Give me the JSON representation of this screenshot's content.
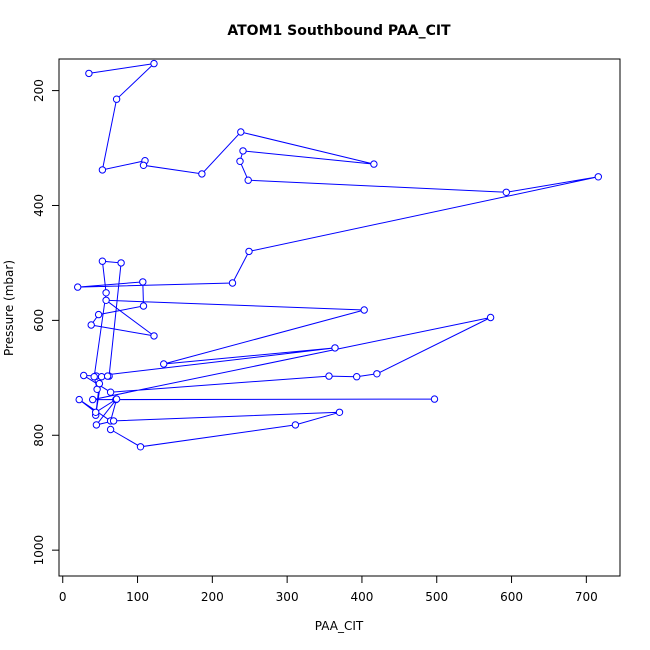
{
  "chart_data": {
    "type": "line",
    "title": "ATOM1 Southbound PAA_CIT",
    "xlabel": "PAA_CIT",
    "ylabel": "Pressure (mbar)",
    "xlim": [
      -5,
      745
    ],
    "ylim": [
      1045,
      145
    ],
    "y_reversed": true,
    "grid": false,
    "legend": "none",
    "color": "#0000ff",
    "x_ticks": [
      0,
      100,
      200,
      300,
      400,
      500,
      600,
      700
    ],
    "y_ticks": [
      200,
      400,
      600,
      800,
      1000
    ],
    "series": [
      {
        "x": [
          35,
          122,
          72,
          53,
          110,
          108,
          186,
          238,
          416,
          241,
          237,
          248,
          593,
          716,
          249,
          227,
          20,
          107,
          108,
          48,
          38,
          122,
          58,
          403,
          135,
          364,
          44,
          45,
          62,
          78,
          53,
          58,
          42,
          46,
          49,
          44,
          52,
          60,
          28,
          64,
          356,
          393,
          420,
          572,
          40,
          497,
          71,
          44,
          22,
          64,
          72,
          45,
          68,
          370,
          311,
          104,
          64
        ],
        "y": [
          170,
          153,
          215,
          338,
          322,
          330,
          345,
          272,
          328,
          305,
          323,
          356,
          377,
          350,
          480,
          535,
          542,
          533,
          575,
          590,
          608,
          627,
          565,
          582,
          676,
          648,
          697,
          697,
          697,
          500,
          497,
          552,
          698,
          720,
          710,
          765,
          698,
          697,
          696,
          725,
          697,
          698,
          693,
          595,
          738,
          737,
          738,
          760,
          738,
          775,
          737,
          782,
          775,
          760,
          782,
          820,
          790
        ]
      }
    ]
  }
}
